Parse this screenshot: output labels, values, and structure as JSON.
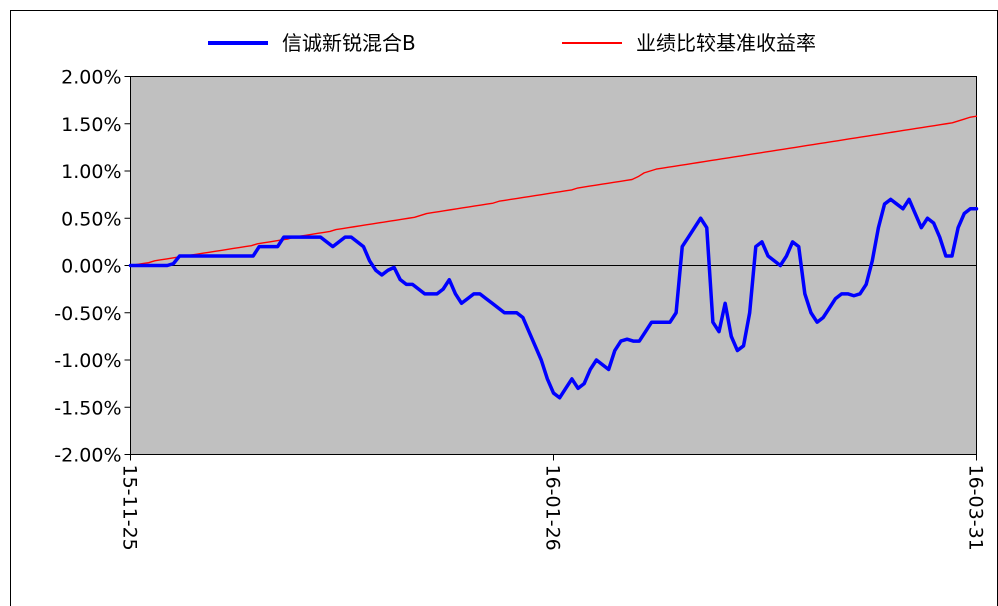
{
  "chart_data": {
    "type": "line",
    "x_tick_labels": [
      "15-11-25",
      "16-01-26",
      "16-03-31"
    ],
    "y_tick_labels": [
      "2.00%",
      "1.50%",
      "1.00%",
      "0.50%",
      "0.00%",
      "-0.50%",
      "-1.00%",
      "-1.50%",
      "-2.00%"
    ],
    "ylim": [
      -2.0,
      2.0
    ],
    "y_unit": "%",
    "grid": false,
    "zero_line": true,
    "plot_background": "#c0c0c0",
    "legend_position": "top",
    "series": [
      {
        "name": "信诚新锐混合B",
        "color": "#0000ff",
        "values": [
          0.0,
          0.0,
          0.0,
          0.0,
          0.0,
          0.0,
          0.0,
          0.02,
          0.1,
          0.1,
          0.1,
          0.1,
          0.1,
          0.1,
          0.1,
          0.1,
          0.1,
          0.1,
          0.1,
          0.1,
          0.1,
          0.2,
          0.2,
          0.2,
          0.2,
          0.3,
          0.3,
          0.3,
          0.3,
          0.3,
          0.3,
          0.3,
          0.25,
          0.2,
          0.25,
          0.3,
          0.3,
          0.25,
          0.2,
          0.05,
          -0.05,
          -0.1,
          -0.05,
          -0.02,
          -0.15,
          -0.2,
          -0.2,
          -0.25,
          -0.3,
          -0.3,
          -0.3,
          -0.25,
          -0.15,
          -0.3,
          -0.4,
          -0.35,
          -0.3,
          -0.3,
          -0.35,
          -0.4,
          -0.45,
          -0.5,
          -0.5,
          -0.5,
          -0.55,
          -0.7,
          -0.85,
          -1.0,
          -1.2,
          -1.35,
          -1.4,
          -1.3,
          -1.2,
          -1.3,
          -1.25,
          -1.1,
          -1.0,
          -1.05,
          -1.1,
          -0.9,
          -0.8,
          -0.78,
          -0.8,
          -0.8,
          -0.7,
          -0.6,
          -0.6,
          -0.6,
          -0.6,
          -0.5,
          0.2,
          0.3,
          0.4,
          0.5,
          0.4,
          -0.6,
          -0.7,
          -0.4,
          -0.75,
          -0.9,
          -0.85,
          -0.5,
          0.2,
          0.25,
          0.1,
          0.05,
          0.0,
          0.1,
          0.25,
          0.2,
          -0.3,
          -0.5,
          -0.6,
          -0.55,
          -0.45,
          -0.35,
          -0.3,
          -0.3,
          -0.32,
          -0.3,
          -0.2,
          0.05,
          0.4,
          0.65,
          0.7,
          0.65,
          0.6,
          0.7,
          0.55,
          0.4,
          0.5,
          0.45,
          0.3,
          0.1,
          0.1,
          0.4,
          0.55,
          0.6,
          0.6
        ]
      },
      {
        "name": "业绩比较基准收益率",
        "color": "#ff0000",
        "values": [
          0.0,
          0.01,
          0.02,
          0.03,
          0.05,
          0.06,
          0.07,
          0.08,
          0.09,
          0.1,
          0.11,
          0.12,
          0.13,
          0.14,
          0.15,
          0.16,
          0.17,
          0.18,
          0.19,
          0.2,
          0.21,
          0.23,
          0.24,
          0.25,
          0.26,
          0.27,
          0.28,
          0.3,
          0.31,
          0.32,
          0.33,
          0.34,
          0.35,
          0.36,
          0.38,
          0.39,
          0.4,
          0.41,
          0.42,
          0.43,
          0.44,
          0.45,
          0.46,
          0.47,
          0.48,
          0.49,
          0.5,
          0.51,
          0.53,
          0.55,
          0.56,
          0.57,
          0.58,
          0.59,
          0.6,
          0.61,
          0.62,
          0.63,
          0.64,
          0.65,
          0.66,
          0.68,
          0.69,
          0.7,
          0.71,
          0.72,
          0.73,
          0.74,
          0.75,
          0.76,
          0.77,
          0.78,
          0.79,
          0.8,
          0.82,
          0.83,
          0.84,
          0.85,
          0.86,
          0.87,
          0.88,
          0.89,
          0.9,
          0.91,
          0.94,
          0.98,
          1.0,
          1.02,
          1.03,
          1.04,
          1.05,
          1.06,
          1.07,
          1.08,
          1.09,
          1.1,
          1.11,
          1.12,
          1.13,
          1.14,
          1.15,
          1.16,
          1.17,
          1.18,
          1.19,
          1.2,
          1.21,
          1.22,
          1.23,
          1.24,
          1.25,
          1.26,
          1.27,
          1.28,
          1.29,
          1.3,
          1.31,
          1.32,
          1.33,
          1.34,
          1.35,
          1.36,
          1.37,
          1.38,
          1.39,
          1.4,
          1.41,
          1.42,
          1.43,
          1.44,
          1.45,
          1.46,
          1.47,
          1.48,
          1.49,
          1.5,
          1.51,
          1.53,
          1.55,
          1.57,
          1.58
        ]
      }
    ]
  }
}
